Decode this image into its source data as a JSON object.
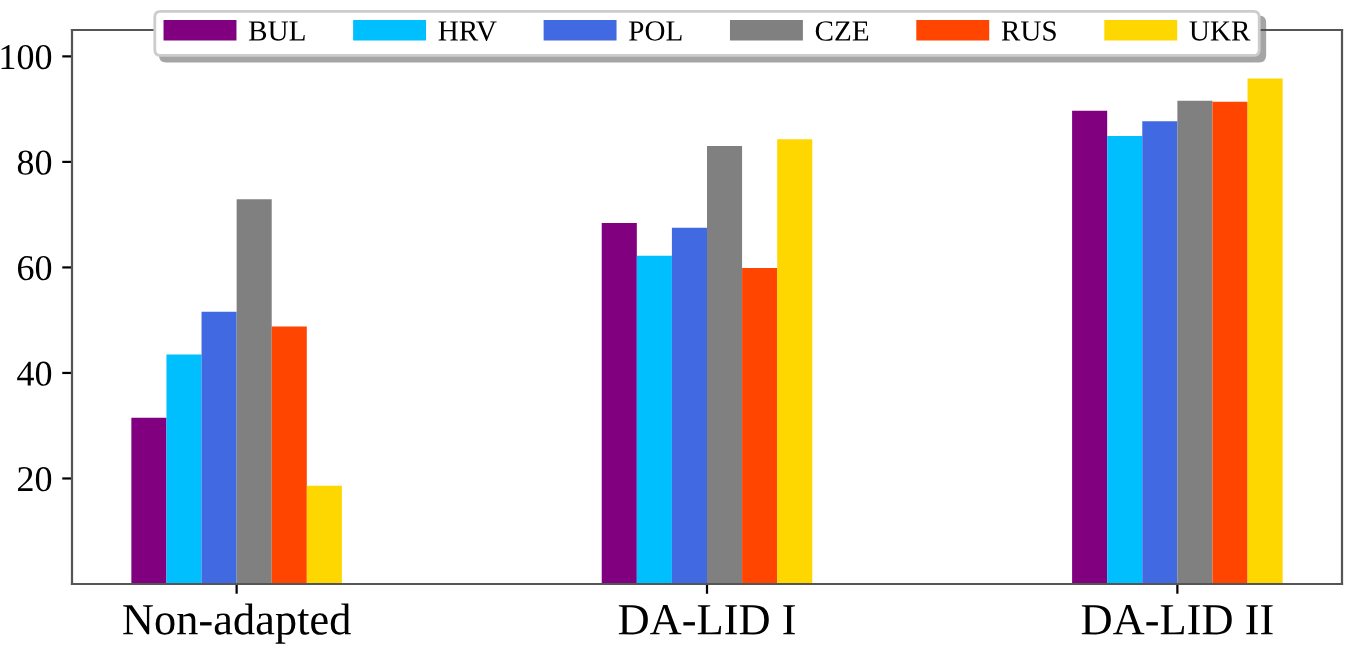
{
  "chart_data": {
    "type": "bar",
    "categories": [
      "Non-adapted",
      "DA-LID I",
      "DA-LID II"
    ],
    "series": [
      {
        "name": "BUL",
        "color": "#800080",
        "values": [
          31.5,
          68.4,
          89.7
        ]
      },
      {
        "name": "HRV",
        "color": "#00bfff",
        "values": [
          43.5,
          62.2,
          84.9
        ]
      },
      {
        "name": "POL",
        "color": "#4169e1",
        "values": [
          51.6,
          67.5,
          87.7
        ]
      },
      {
        "name": "CZE",
        "color": "#808080",
        "values": [
          72.9,
          83.0,
          91.6
        ]
      },
      {
        "name": "RUS",
        "color": "#ff4500",
        "values": [
          48.8,
          59.9,
          91.4
        ]
      },
      {
        "name": "UKR",
        "color": "#ffd700",
        "values": [
          18.6,
          84.3,
          95.8
        ]
      }
    ],
    "ylim": [
      0,
      105
    ],
    "yticks": [
      20,
      40,
      60,
      80,
      100
    ],
    "grid": false,
    "legend": "top"
  }
}
